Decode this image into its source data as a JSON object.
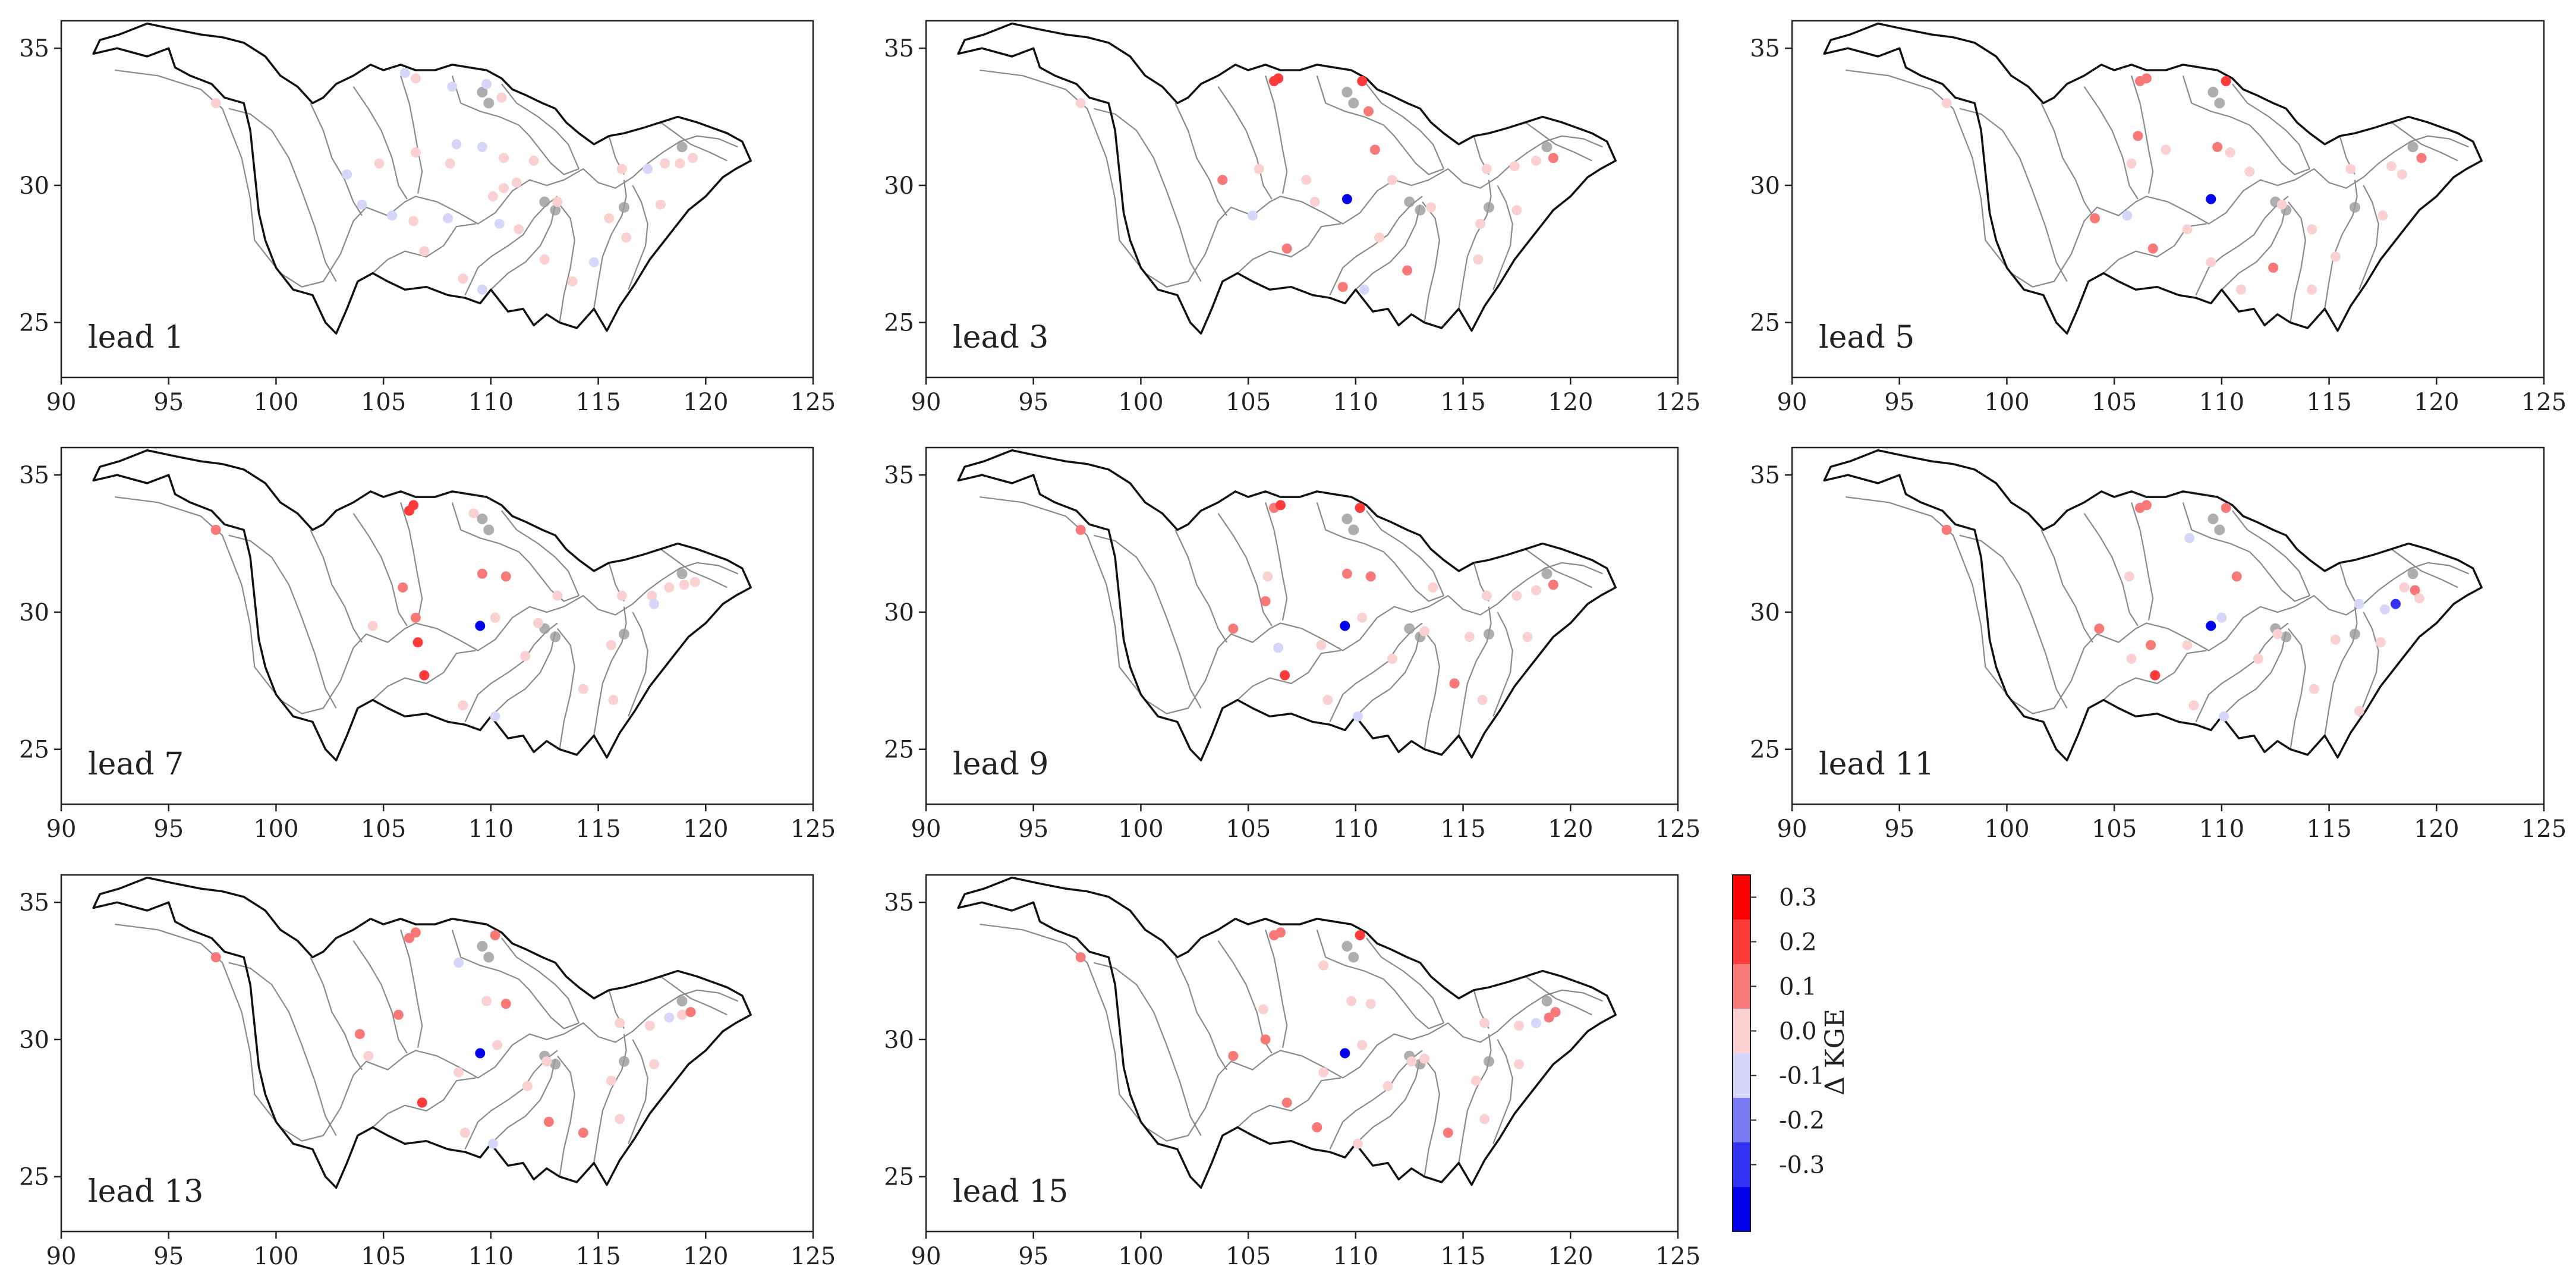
{
  "figure": {
    "colorbar": {
      "title": "Δ KGE",
      "tick_labels": [
        "0.3",
        "0.2",
        "0.1",
        "0.0",
        "-0.1",
        "-0.2",
        "-0.3"
      ],
      "bins": [
        {
          "range": "0.3 to 0.4",
          "color": "#ff0000"
        },
        {
          "range": "0.2 to 0.3",
          "color": "#ff3a3a"
        },
        {
          "range": "0.1 to 0.2",
          "color": "#f87878"
        },
        {
          "range": "0.0 to 0.1",
          "color": "#fbd0d0"
        },
        {
          "range": "-0.1 to 0.0",
          "color": "#d6d6fb"
        },
        {
          "range": "-0.2 to -0.1",
          "color": "#7a7af5"
        },
        {
          "range": "-0.3 to -0.2",
          "color": "#3333f5"
        },
        {
          "range": "-0.4 to -0.3",
          "color": "#0000ee"
        }
      ]
    },
    "axes": {
      "xlim": [
        90,
        125
      ],
      "ylim": [
        23,
        36
      ],
      "x_ticks": [
        "90",
        "95",
        "100",
        "105",
        "110",
        "115",
        "120",
        "125"
      ],
      "y_ticks": [
        "35",
        "30",
        "25"
      ]
    },
    "panels": [
      {
        "label": "lead 1",
        "points": [
          [
            97.2,
            33,
            0.05
          ],
          [
            106,
            34.1,
            -0.05
          ],
          [
            106.5,
            33.9,
            0.05
          ],
          [
            108.2,
            33.6,
            -0.05
          ],
          [
            109.8,
            33.7,
            -0.05
          ],
          [
            110.5,
            33.2,
            0.05
          ],
          [
            103.3,
            30.4,
            -0.05
          ],
          [
            104.8,
            30.8,
            0.05
          ],
          [
            106.5,
            31.2,
            0.05
          ],
          [
            108.1,
            30.8,
            0.05
          ],
          [
            109.6,
            31.4,
            -0.05
          ],
          [
            110.6,
            31,
            0.05
          ],
          [
            112,
            30.9,
            0.05
          ],
          [
            108.4,
            31.5,
            -0.05
          ],
          [
            104,
            29.3,
            -0.05
          ],
          [
            105.4,
            28.9,
            -0.05
          ],
          [
            106.4,
            28.7,
            0.05
          ],
          [
            108,
            28.8,
            -0.05
          ],
          [
            110.1,
            29.6,
            0.05
          ],
          [
            110.6,
            29.9,
            0.05
          ],
          [
            111.2,
            30.1,
            0.05
          ],
          [
            106.9,
            27.6,
            0.05
          ],
          [
            108.7,
            26.6,
            0.05
          ],
          [
            109.6,
            26.2,
            -0.05
          ],
          [
            110.4,
            28.6,
            -0.05
          ],
          [
            111.3,
            28.4,
            0.05
          ],
          [
            112.5,
            27.3,
            0.05
          ],
          [
            113.8,
            26.5,
            0.05
          ],
          [
            115.5,
            28.8,
            0.05
          ],
          [
            116.1,
            30.6,
            0.05
          ],
          [
            117.3,
            30.6,
            -0.05
          ],
          [
            118.1,
            30.8,
            0.05
          ],
          [
            118.8,
            30.8,
            0.05
          ],
          [
            119.4,
            31,
            0.05
          ],
          [
            117.9,
            29.3,
            0.05
          ],
          [
            116.3,
            28.1,
            0.05
          ],
          [
            114.8,
            27.2,
            -0.05
          ],
          [
            113.1,
            29.4,
            0.05
          ]
        ]
      },
      {
        "label": "lead 3",
        "points": [
          [
            97.2,
            33,
            0.05
          ],
          [
            106.2,
            33.8,
            0.25
          ],
          [
            106.4,
            33.9,
            0.25
          ],
          [
            110.3,
            33.8,
            0.25
          ],
          [
            110.6,
            32.7,
            0.15
          ],
          [
            103.8,
            30.2,
            0.15
          ],
          [
            105.5,
            30.6,
            0.05
          ],
          [
            107.7,
            30.2,
            0.05
          ],
          [
            109.6,
            29.5,
            -0.35
          ],
          [
            110.9,
            31.3,
            0.15
          ],
          [
            111.7,
            30.2,
            0.05
          ],
          [
            108.1,
            29.4,
            0.05
          ],
          [
            105.2,
            28.9,
            -0.05
          ],
          [
            106.8,
            27.7,
            0.15
          ],
          [
            109.4,
            26.3,
            0.15
          ],
          [
            110.4,
            26.2,
            -0.05
          ],
          [
            112.4,
            26.9,
            0.15
          ],
          [
            111.1,
            28.1,
            0.05
          ],
          [
            115.8,
            28.6,
            0.05
          ],
          [
            116.1,
            30.6,
            0.05
          ],
          [
            117.4,
            30.7,
            0.05
          ],
          [
            118.4,
            30.9,
            0.05
          ],
          [
            119.2,
            31,
            0.15
          ],
          [
            117.5,
            29.1,
            0.05
          ],
          [
            115.7,
            27.3,
            0.05
          ],
          [
            113.5,
            29.2,
            0.05
          ]
        ]
      },
      {
        "label": "lead 5",
        "points": [
          [
            97.2,
            33,
            0.05
          ],
          [
            106.2,
            33.8,
            0.15
          ],
          [
            106.5,
            33.9,
            0.15
          ],
          [
            110.2,
            33.8,
            0.25
          ],
          [
            106.1,
            31.8,
            0.15
          ],
          [
            105.8,
            30.8,
            0.05
          ],
          [
            104.1,
            28.8,
            0.15
          ],
          [
            105.6,
            28.9,
            -0.05
          ],
          [
            107.4,
            31.3,
            0.05
          ],
          [
            109.8,
            31.4,
            0.15
          ],
          [
            110.4,
            31.2,
            0.05
          ],
          [
            109.5,
            29.5,
            -0.35
          ],
          [
            111.3,
            30.5,
            0.05
          ],
          [
            106.8,
            27.7,
            0.15
          ],
          [
            108.4,
            28.4,
            0.05
          ],
          [
            109.5,
            27.2,
            0.05
          ],
          [
            110.9,
            26.2,
            0.05
          ],
          [
            112.4,
            27,
            0.15
          ],
          [
            114.2,
            28.4,
            0.05
          ],
          [
            116,
            30.6,
            0.05
          ],
          [
            117.9,
            30.7,
            0.05
          ],
          [
            118.4,
            30.4,
            0.05
          ],
          [
            119.3,
            31,
            0.15
          ],
          [
            115.3,
            27.4,
            0.05
          ],
          [
            114.2,
            26.2,
            0.05
          ],
          [
            117.5,
            28.9,
            0.05
          ],
          [
            112.8,
            29.3,
            0.05
          ]
        ]
      },
      {
        "label": "lead 7",
        "points": [
          [
            97.2,
            33,
            0.15
          ],
          [
            106.2,
            33.7,
            0.25
          ],
          [
            106.4,
            33.9,
            0.25
          ],
          [
            109.2,
            33.6,
            0.05
          ],
          [
            105.9,
            30.9,
            0.15
          ],
          [
            106.5,
            29.8,
            0.15
          ],
          [
            106.6,
            28.9,
            0.25
          ],
          [
            106.9,
            27.7,
            0.25
          ],
          [
            109.5,
            29.5,
            -0.35
          ],
          [
            109.6,
            31.4,
            0.15
          ],
          [
            110.7,
            31.3,
            0.15
          ],
          [
            110.2,
            29.8,
            0.05
          ],
          [
            111.6,
            28.4,
            0.05
          ],
          [
            108.7,
            26.6,
            0.05
          ],
          [
            110.2,
            26.2,
            -0.05
          ],
          [
            104.5,
            29.5,
            0.05
          ],
          [
            112.2,
            29.6,
            0.05
          ],
          [
            114.3,
            27.2,
            0.05
          ],
          [
            115.6,
            28.8,
            0.05
          ],
          [
            116.1,
            30.6,
            0.05
          ],
          [
            117.5,
            30.6,
            0.05
          ],
          [
            118.3,
            30.9,
            0.05
          ],
          [
            119,
            31,
            0.05
          ],
          [
            119.5,
            31.1,
            0.05
          ],
          [
            117.6,
            30.3,
            -0.05
          ],
          [
            115.7,
            26.8,
            0.05
          ],
          [
            113.1,
            30.6,
            0.05
          ]
        ]
      },
      {
        "label": "lead 9",
        "points": [
          [
            97.2,
            33,
            0.15
          ],
          [
            106.2,
            33.8,
            0.15
          ],
          [
            106.5,
            33.9,
            0.25
          ],
          [
            110.2,
            33.8,
            0.25
          ],
          [
            105.9,
            31.3,
            0.05
          ],
          [
            105.8,
            30.4,
            0.15
          ],
          [
            104.3,
            29.4,
            0.15
          ],
          [
            106.7,
            27.7,
            0.25
          ],
          [
            109.5,
            29.5,
            -0.35
          ],
          [
            109.6,
            31.4,
            0.15
          ],
          [
            110.7,
            31.3,
            0.15
          ],
          [
            110.3,
            29.8,
            0.05
          ],
          [
            111.7,
            28.3,
            0.05
          ],
          [
            108.4,
            28.8,
            0.05
          ],
          [
            108.7,
            26.8,
            0.05
          ],
          [
            110.1,
            26.2,
            -0.05
          ],
          [
            106.4,
            28.7,
            -0.05
          ],
          [
            113.2,
            29.3,
            0.05
          ],
          [
            114.6,
            27.4,
            0.15
          ],
          [
            115.3,
            29.1,
            0.05
          ],
          [
            116.1,
            30.6,
            0.05
          ],
          [
            117.5,
            30.6,
            0.05
          ],
          [
            118.4,
            30.8,
            0.05
          ],
          [
            119.2,
            31,
            0.15
          ],
          [
            118,
            29.1,
            0.05
          ],
          [
            115.9,
            26.8,
            0.05
          ],
          [
            113.6,
            30.9,
            0.05
          ]
        ]
      },
      {
        "label": "lead 11",
        "points": [
          [
            97.2,
            33,
            0.15
          ],
          [
            106.2,
            33.8,
            0.15
          ],
          [
            106.5,
            33.9,
            0.15
          ],
          [
            110.2,
            33.8,
            0.15
          ],
          [
            108.5,
            32.7,
            -0.05
          ],
          [
            105.7,
            31.3,
            0.05
          ],
          [
            104.3,
            29.4,
            0.15
          ],
          [
            106.7,
            28.8,
            0.15
          ],
          [
            106.9,
            27.7,
            0.25
          ],
          [
            109.5,
            29.5,
            -0.35
          ],
          [
            110,
            29.8,
            -0.05
          ],
          [
            110.7,
            31.3,
            0.15
          ],
          [
            111.7,
            28.3,
            0.05
          ],
          [
            108.4,
            28.8,
            0.05
          ],
          [
            108.7,
            26.6,
            0.05
          ],
          [
            110.1,
            26.2,
            -0.05
          ],
          [
            105.8,
            28.3,
            0.05
          ],
          [
            112.6,
            29.2,
            0.05
          ],
          [
            114.3,
            27.2,
            0.05
          ],
          [
            115.3,
            29,
            0.05
          ],
          [
            116.4,
            30.3,
            -0.05
          ],
          [
            117.6,
            30.1,
            -0.05
          ],
          [
            118.1,
            30.3,
            -0.25
          ],
          [
            118.5,
            30.9,
            0.05
          ],
          [
            119,
            30.8,
            0.15
          ],
          [
            119.2,
            30.5,
            0.05
          ],
          [
            117.4,
            28.9,
            0.05
          ],
          [
            116.4,
            26.4,
            0.05
          ]
        ]
      },
      {
        "label": "lead 13",
        "points": [
          [
            97.2,
            33,
            0.15
          ],
          [
            106.2,
            33.7,
            0.15
          ],
          [
            106.5,
            33.9,
            0.15
          ],
          [
            110.2,
            33.8,
            0.15
          ],
          [
            108.5,
            32.8,
            -0.05
          ],
          [
            105.7,
            30.9,
            0.15
          ],
          [
            103.9,
            30.2,
            0.15
          ],
          [
            104.3,
            29.4,
            0.05
          ],
          [
            106.8,
            27.7,
            0.25
          ],
          [
            109.5,
            29.5,
            -0.35
          ],
          [
            109.8,
            31.4,
            0.05
          ],
          [
            110.7,
            31.3,
            0.15
          ],
          [
            110.3,
            29.8,
            0.05
          ],
          [
            111.7,
            28.3,
            0.05
          ],
          [
            108.5,
            28.8,
            0.05
          ],
          [
            108.8,
            26.6,
            0.05
          ],
          [
            110.1,
            26.2,
            -0.05
          ],
          [
            112.6,
            29.2,
            0.05
          ],
          [
            112.7,
            27,
            0.15
          ],
          [
            114.3,
            26.6,
            0.15
          ],
          [
            115.6,
            28.5,
            0.05
          ],
          [
            116,
            30.6,
            0.05
          ],
          [
            117.4,
            30.5,
            0.05
          ],
          [
            118.3,
            30.8,
            -0.05
          ],
          [
            118.9,
            30.9,
            0.05
          ],
          [
            119.3,
            31,
            0.15
          ],
          [
            117.6,
            29.1,
            0.05
          ],
          [
            116,
            27.1,
            0.05
          ]
        ]
      },
      {
        "label": "lead 15",
        "points": [
          [
            97.2,
            33,
            0.15
          ],
          [
            106.2,
            33.8,
            0.15
          ],
          [
            106.5,
            33.9,
            0.15
          ],
          [
            110.2,
            33.8,
            0.25
          ],
          [
            108.5,
            32.7,
            0.05
          ],
          [
            105.7,
            31.1,
            0.05
          ],
          [
            105.8,
            30,
            0.15
          ],
          [
            104.3,
            29.4,
            0.15
          ],
          [
            106.8,
            27.7,
            0.15
          ],
          [
            108.2,
            26.8,
            0.15
          ],
          [
            109.5,
            29.5,
            -0.35
          ],
          [
            109.8,
            31.4,
            0.05
          ],
          [
            110.7,
            31.3,
            0.05
          ],
          [
            110.3,
            29.8,
            0.05
          ],
          [
            111.5,
            28.3,
            0.05
          ],
          [
            108.5,
            28.8,
            0.05
          ],
          [
            110.1,
            26.2,
            0.05
          ],
          [
            112.6,
            29.2,
            0.05
          ],
          [
            114.3,
            26.6,
            0.15
          ],
          [
            115.6,
            28.5,
            0.05
          ],
          [
            116,
            30.6,
            0.05
          ],
          [
            117.6,
            30.5,
            0.05
          ],
          [
            118.4,
            30.6,
            -0.05
          ],
          [
            119,
            30.8,
            0.15
          ],
          [
            119.3,
            31,
            0.15
          ],
          [
            117.6,
            29.1,
            0.05
          ],
          [
            116,
            27.1,
            0.05
          ],
          [
            113.2,
            29.3,
            0.05
          ]
        ]
      }
    ]
  }
}
